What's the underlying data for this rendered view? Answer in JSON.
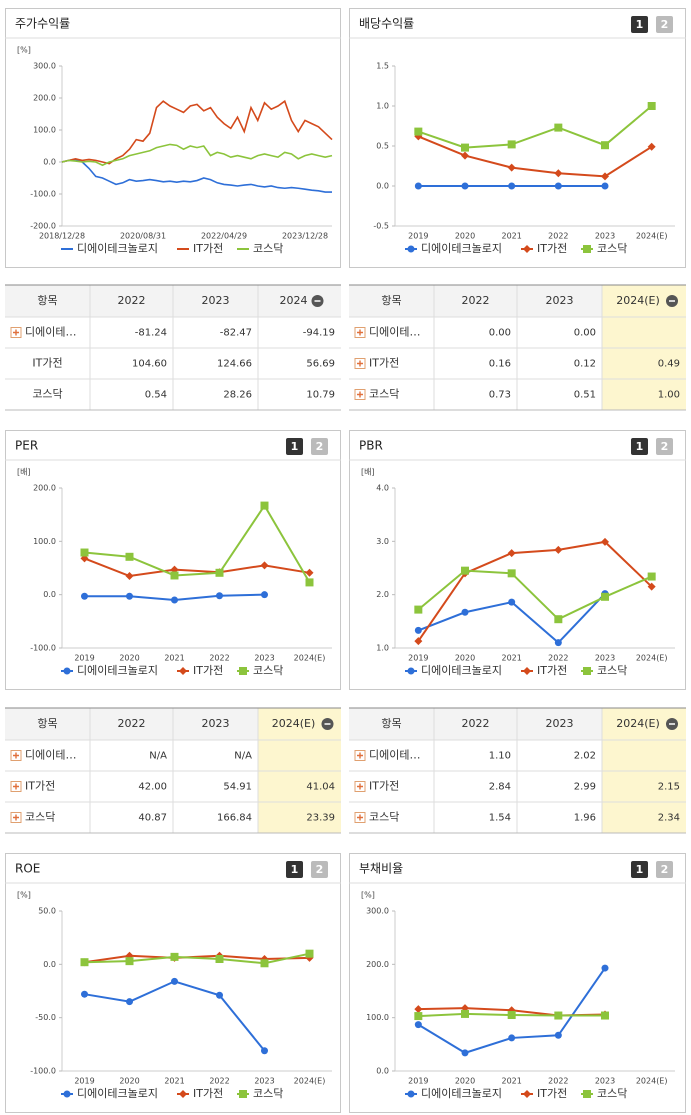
{
  "chart_data": [
    {
      "type": "line",
      "title": "주가수익률",
      "y_label": "[%]",
      "markers": false,
      "categories": [
        "2018/12/28",
        null,
        null,
        null,
        null,
        null,
        null,
        null,
        null,
        null,
        null,
        null,
        "2020/08/31",
        null,
        null,
        null,
        null,
        null,
        null,
        null,
        null,
        null,
        null,
        null,
        "2022/04/29",
        null,
        null,
        null,
        null,
        null,
        null,
        null,
        null,
        null,
        null,
        null,
        "2023/12/28",
        null,
        null,
        null,
        null
      ],
      "series": [
        {
          "name": "디에이테크놀로지",
          "color": "#2e6fd8",
          "values": [
            0,
            5,
            8,
            0,
            -20,
            -45,
            -50,
            -60,
            -70,
            -65,
            -55,
            -60,
            -58,
            -55,
            -58,
            -62,
            -60,
            -63,
            -60,
            -62,
            -58,
            -50,
            -55,
            -65,
            -70,
            -72,
            -75,
            -72,
            -70,
            -75,
            -78,
            -75,
            -80,
            -82,
            -80,
            -82,
            -85,
            -88,
            -90,
            -94,
            -94
          ]
        },
        {
          "name": "IT가전",
          "color": "#d44a1c",
          "values": [
            0,
            5,
            10,
            5,
            8,
            5,
            0,
            -5,
            10,
            20,
            40,
            70,
            65,
            90,
            170,
            190,
            175,
            165,
            155,
            175,
            180,
            160,
            170,
            140,
            120,
            105,
            140,
            95,
            170,
            130,
            185,
            165,
            175,
            190,
            130,
            95,
            130,
            120,
            110,
            90,
            70
          ]
        },
        {
          "name": "코스닥",
          "color": "#8cc43c",
          "values": [
            0,
            5,
            3,
            0,
            2,
            0,
            -10,
            0,
            5,
            10,
            20,
            25,
            30,
            35,
            45,
            50,
            55,
            52,
            40,
            50,
            45,
            50,
            20,
            30,
            25,
            15,
            20,
            15,
            10,
            20,
            25,
            20,
            15,
            30,
            25,
            10,
            20,
            25,
            20,
            15,
            20
          ]
        }
      ],
      "ylim": [
        -200,
        300
      ],
      "yticks": [
        {
          "value": -200,
          "label": "-200.0"
        },
        {
          "value": -100,
          "label": "-100.0"
        },
        {
          "value": 0,
          "label": "0.0"
        },
        {
          "value": 100,
          "label": "100.0"
        },
        {
          "value": 200,
          "label": "200.0"
        },
        {
          "value": 300,
          "label": "300.0"
        }
      ]
    },
    {
      "type": "line",
      "title": "배당수익률",
      "tab_labels": [
        "1",
        "2"
      ],
      "markers": true,
      "categories": [
        "2019",
        "2020",
        "2021",
        "2022",
        "2023",
        "2024(E)"
      ],
      "series": [
        {
          "name": "디에이테크놀로지",
          "color": "#2e6fd8",
          "marker": "circle",
          "values": [
            0,
            0,
            0,
            0,
            0,
            null
          ]
        },
        {
          "name": "IT가전",
          "color": "#d44a1c",
          "marker": "diamond",
          "values": [
            0.62,
            0.38,
            0.23,
            0.16,
            0.12,
            0.49
          ]
        },
        {
          "name": "코스닥",
          "color": "#8cc43c",
          "marker": "square",
          "values": [
            0.68,
            0.48,
            0.52,
            0.73,
            0.51,
            1.0
          ]
        }
      ],
      "ylim": [
        -0.5,
        1.5
      ],
      "yticks": [
        {
          "value": -0.5,
          "label": "-0.5"
        },
        {
          "value": 0,
          "label": "0.0"
        },
        {
          "value": 0.5,
          "label": "0.5"
        },
        {
          "value": 1,
          "label": "1.0"
        },
        {
          "value": 1.5,
          "label": "1.5"
        }
      ]
    },
    {
      "type": "line",
      "title": "PER",
      "tab_labels": [
        "1",
        "2"
      ],
      "y_label": "[배]",
      "markers": true,
      "categories": [
        "2019",
        "2020",
        "2021",
        "2022",
        "2023",
        "2024(E)"
      ],
      "series": [
        {
          "name": "디에이테크놀로지",
          "color": "#2e6fd8",
          "marker": "circle",
          "values": [
            -3,
            -3,
            -10,
            -2,
            0,
            null
          ]
        },
        {
          "name": "IT가전",
          "color": "#d44a1c",
          "marker": "diamond",
          "values": [
            68,
            35,
            47,
            42,
            55,
            41
          ]
        },
        {
          "name": "코스닥",
          "color": "#8cc43c",
          "marker": "square",
          "values": [
            79,
            71,
            36,
            41,
            167,
            23
          ]
        }
      ],
      "ylim": [
        -100,
        200
      ],
      "yticks": [
        {
          "value": -100,
          "label": "-100.0"
        },
        {
          "value": 0,
          "label": "0.0"
        },
        {
          "value": 100,
          "label": "100.0"
        },
        {
          "value": 200,
          "label": "200.0"
        }
      ]
    },
    {
      "type": "line",
      "title": "PBR",
      "tab_labels": [
        "1",
        "2"
      ],
      "y_label": "[배]",
      "markers": true,
      "categories": [
        "2019",
        "2020",
        "2021",
        "2022",
        "2023",
        "2024(E)"
      ],
      "series": [
        {
          "name": "디에이테크놀로지",
          "color": "#2e6fd8",
          "marker": "circle",
          "values": [
            1.33,
            1.67,
            1.86,
            1.1,
            2.02,
            null
          ]
        },
        {
          "name": "IT가전",
          "color": "#d44a1c",
          "marker": "diamond",
          "values": [
            1.13,
            2.4,
            2.78,
            2.84,
            2.99,
            2.15
          ]
        },
        {
          "name": "코스닥",
          "color": "#8cc43c",
          "marker": "square",
          "values": [
            1.72,
            2.45,
            2.4,
            1.54,
            1.96,
            2.34
          ]
        }
      ],
      "ylim": [
        1,
        4
      ],
      "yticks": [
        {
          "value": 1,
          "label": "1.0"
        },
        {
          "value": 2,
          "label": "2.0"
        },
        {
          "value": 3,
          "label": "3.0"
        },
        {
          "value": 4,
          "label": "4.0"
        }
      ]
    },
    {
      "type": "line",
      "title": "ROE",
      "tab_labels": [
        "1",
        "2"
      ],
      "y_label": "[%]",
      "markers": true,
      "categories": [
        "2019",
        "2020",
        "2021",
        "2022",
        "2023",
        "2024(E)"
      ],
      "series": [
        {
          "name": "디에이테크놀로지",
          "color": "#2e6fd8",
          "marker": "circle",
          "values": [
            -28,
            -35,
            -16,
            -29,
            -81,
            null
          ]
        },
        {
          "name": "IT가전",
          "color": "#d44a1c",
          "marker": "diamond",
          "values": [
            2,
            8,
            6,
            8,
            5,
            6
          ]
        },
        {
          "name": "코스닥",
          "color": "#8cc43c",
          "marker": "square",
          "values": [
            2,
            3,
            7,
            5,
            1,
            10
          ]
        }
      ],
      "ylim": [
        -100,
        50
      ],
      "yticks": [
        {
          "value": -100,
          "label": "-100.0"
        },
        {
          "value": -50,
          "label": "-50.0"
        },
        {
          "value": 0,
          "label": "0.0"
        },
        {
          "value": 50,
          "label": "50.0"
        }
      ]
    },
    {
      "type": "line",
      "title": "부채비율",
      "tab_labels": [
        "1",
        "2"
      ],
      "y_label": "[%]",
      "markers": true,
      "categories": [
        "2019",
        "2020",
        "2021",
        "2022",
        "2023",
        "2024(E)"
      ],
      "series": [
        {
          "name": "디에이테크놀로지",
          "color": "#2e6fd8",
          "marker": "circle",
          "values": [
            87,
            34,
            62,
            67,
            193,
            null
          ]
        },
        {
          "name": "IT가전",
          "color": "#d44a1c",
          "marker": "diamond",
          "values": [
            116,
            118,
            114,
            104,
            106,
            null
          ]
        },
        {
          "name": "코스닥",
          "color": "#8cc43c",
          "marker": "square",
          "values": [
            103,
            107,
            105,
            104,
            104,
            null
          ]
        }
      ],
      "ylim": [
        0,
        300
      ],
      "yticks": [
        {
          "value": 0,
          "label": "0.0"
        },
        {
          "value": 100,
          "label": "100.0"
        },
        {
          "value": 200,
          "label": "200.0"
        },
        {
          "value": 300,
          "label": "300.0"
        }
      ]
    }
  ],
  "tables": [
    {
      "columns": [
        "항목",
        "2022",
        "2023",
        "2024"
      ],
      "highlight_last": false,
      "rows": [
        [
          "디에이테…",
          "-81.24",
          "-82.47",
          "-94.19"
        ],
        [
          "IT가전",
          "104.60",
          "124.66",
          "56.69"
        ],
        [
          "코스닥",
          "0.54",
          "28.26",
          "10.79"
        ]
      ]
    },
    {
      "columns": [
        "항목",
        "2022",
        "2023",
        "2024(E)"
      ],
      "highlight_last": true,
      "rows": [
        [
          "디에이테…",
          "0.00",
          "0.00",
          null
        ],
        [
          "IT가전",
          "0.16",
          "0.12",
          "0.49"
        ],
        [
          "코스닥",
          "0.73",
          "0.51",
          "1.00"
        ]
      ]
    },
    {
      "columns": [
        "항목",
        "2022",
        "2023",
        "2024(E)"
      ],
      "highlight_last": true,
      "rows": [
        [
          "디에이테…",
          "N/A",
          "N/A",
          null
        ],
        [
          "IT가전",
          "42.00",
          "54.91",
          "41.04"
        ],
        [
          "코스닥",
          "40.87",
          "166.84",
          "23.39"
        ]
      ]
    },
    {
      "columns": [
        "항목",
        "2022",
        "2023",
        "2024(E)"
      ],
      "highlight_last": true,
      "rows": [
        [
          "디에이테…",
          "1.10",
          "2.02",
          null
        ],
        [
          "IT가전",
          "2.84",
          "2.99",
          "2.15"
        ],
        [
          "코스닥",
          "1.54",
          "1.96",
          "2.34"
        ]
      ]
    }
  ]
}
